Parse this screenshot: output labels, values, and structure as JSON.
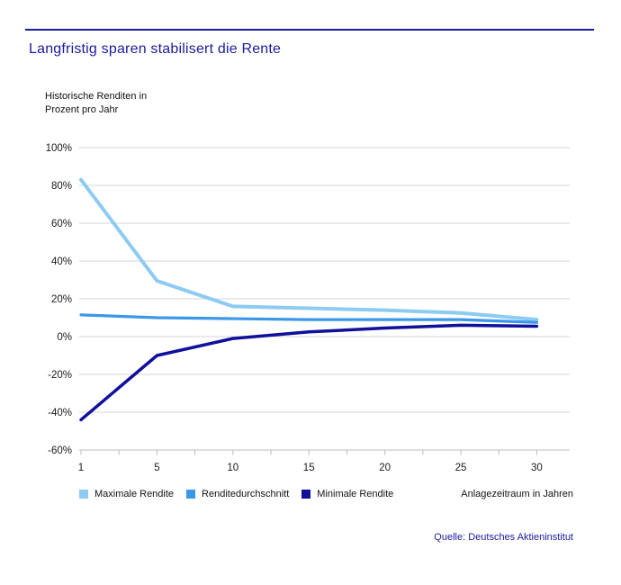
{
  "header": {
    "title": "Langfristig sparen stabilisert die Rente",
    "accent_color": "#1b1b9e"
  },
  "chart_data": {
    "type": "line",
    "title": "Langfristig sparen stabilisert die Rente",
    "ylabel": "Historische Renditen in Prozent pro Jahr",
    "ylabel_lines": [
      "Historische Renditen in",
      "Prozent pro Jahr"
    ],
    "xlabel": "Anlagezeitraum in Jahren",
    "categories": [
      1,
      5,
      10,
      15,
      20,
      25,
      30
    ],
    "x_tick_labels": [
      "1",
      "5",
      "10",
      "15",
      "20",
      "25",
      "30"
    ],
    "y_ticks": [
      100,
      80,
      60,
      40,
      20,
      0,
      -20,
      -40,
      -60
    ],
    "y_tick_labels": [
      "100%",
      "80%",
      "60%",
      "40%",
      "20%",
      "0%",
      "-20%",
      "-40%",
      "-60%"
    ],
    "ylim": [
      -60,
      100
    ],
    "grid": true,
    "legend_position": "bottom",
    "series": [
      {
        "name": "Maximale Rendite",
        "color": "#8dcbf2",
        "values": [
          83,
          29.5,
          16,
          15,
          14,
          12.5,
          9
        ]
      },
      {
        "name": "Renditedurchschnitt",
        "color": "#3b97e8",
        "values": [
          11.5,
          10,
          9.5,
          9,
          9,
          9,
          7.5
        ]
      },
      {
        "name": "Minimale Rendite",
        "color": "#10109b",
        "values": [
          -44,
          -10,
          -1,
          2.5,
          4.5,
          6,
          5.5
        ]
      }
    ],
    "grid_color": "#d4d4d4",
    "axis_color": "#bdbdbd"
  },
  "source": {
    "label": "Quelle: Deutsches Aktieninstitut"
  }
}
